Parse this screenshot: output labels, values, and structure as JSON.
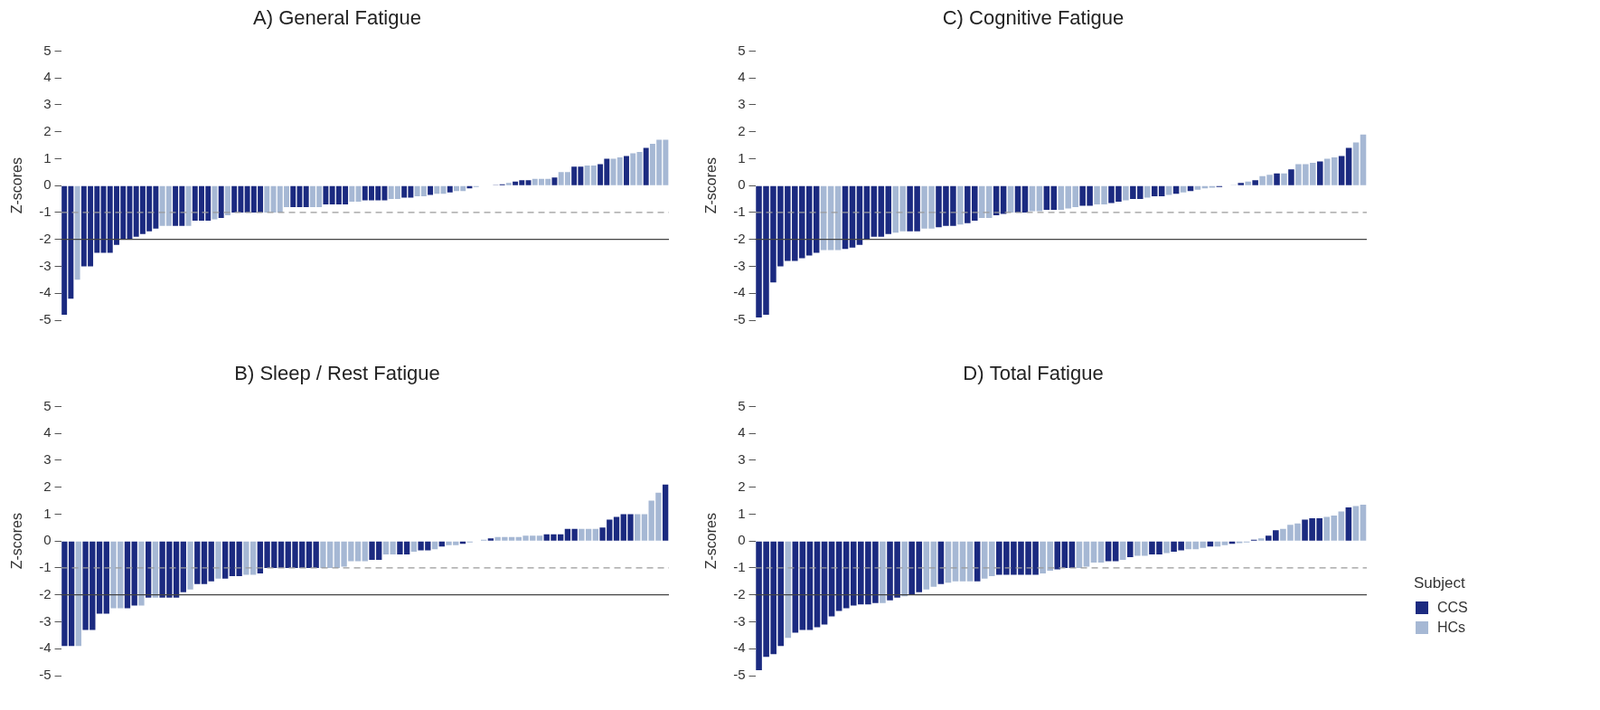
{
  "chart_data": [
    {
      "type": "bar",
      "title": "A) General Fatigue",
      "y_label": "Z-scores",
      "ylim": [
        -5,
        5
      ],
      "yticks": [
        -5,
        -4,
        -3,
        -2,
        -1,
        0,
        1,
        2,
        3,
        4,
        5
      ],
      "grid": false,
      "tick_labels": "y",
      "hlines": [
        {
          "y": -1,
          "line_style": "dashed"
        },
        {
          "y": -2,
          "line_style": "solid"
        }
      ],
      "series": [
        {
          "name": "CCS",
          "color": "#1b2a80",
          "values": [
            -4.8,
            -4.2,
            null,
            -3.0,
            -3.0,
            -2.5,
            -2.5,
            -2.5,
            -2.2,
            -2.0,
            -2.0,
            -1.9,
            -1.8,
            -1.7,
            -1.6,
            null,
            null,
            -1.5,
            -1.5,
            null,
            -1.3,
            -1.3,
            -1.3,
            null,
            -1.2,
            null,
            -1.0,
            -1.0,
            -1.0,
            -1.0,
            -1.0,
            null,
            null,
            null,
            null,
            -0.8,
            -0.8,
            -0.8,
            null,
            null,
            -0.7,
            -0.7,
            -0.7,
            -0.7,
            null,
            null,
            -0.55,
            -0.55,
            -0.55,
            -0.55,
            null,
            null,
            -0.45,
            -0.45,
            null,
            null,
            -0.35,
            null,
            null,
            -0.25,
            null,
            null,
            -0.1,
            null,
            -0.02,
            null,
            0.02,
            0.05,
            null,
            0.15,
            0.2,
            0.2,
            null,
            null,
            null,
            0.3,
            null,
            null,
            0.7,
            0.7,
            null,
            null,
            0.8,
            1.0,
            null,
            null,
            1.1,
            null,
            null,
            1.4,
            null,
            null,
            null
          ]
        },
        {
          "name": "HCs",
          "color": "#a6b8d4",
          "values": [
            null,
            null,
            -3.5,
            null,
            null,
            null,
            null,
            null,
            null,
            null,
            null,
            null,
            null,
            null,
            null,
            -1.5,
            -1.5,
            null,
            null,
            -1.5,
            null,
            null,
            null,
            -1.25,
            null,
            -1.1,
            null,
            null,
            null,
            null,
            null,
            -1.0,
            -1.0,
            -1.0,
            -0.8,
            null,
            null,
            null,
            -0.8,
            -0.8,
            null,
            null,
            null,
            null,
            -0.6,
            -0.6,
            null,
            null,
            null,
            null,
            -0.5,
            -0.5,
            null,
            null,
            -0.4,
            -0.4,
            null,
            -0.3,
            -0.3,
            null,
            -0.2,
            -0.2,
            null,
            -0.05,
            null,
            0,
            null,
            null,
            0.1,
            null,
            null,
            null,
            0.25,
            0.25,
            0.25,
            null,
            0.5,
            0.5,
            null,
            null,
            0.75,
            0.75,
            null,
            null,
            1.0,
            1.05,
            null,
            1.2,
            1.25,
            null,
            1.55,
            1.7,
            1.7
          ]
        }
      ]
    },
    {
      "type": "bar",
      "title": "B) Sleep / Rest Fatigue",
      "y_label": "Z-scores",
      "ylim": [
        -5,
        5
      ],
      "yticks": [
        -5,
        -4,
        -3,
        -2,
        -1,
        0,
        1,
        2,
        3,
        4,
        5
      ],
      "grid": false,
      "tick_labels": "y",
      "hlines": [
        {
          "y": -1,
          "line_style": "dashed"
        },
        {
          "y": -2,
          "line_style": "solid"
        }
      ],
      "series": [
        {
          "name": "CCS",
          "color": "#1b2a80",
          "values": [
            -3.9,
            -3.9,
            null,
            -3.3,
            -3.3,
            -2.7,
            -2.7,
            null,
            null,
            -2.5,
            -2.4,
            null,
            -2.1,
            null,
            -2.1,
            -2.1,
            -2.1,
            -1.9,
            null,
            -1.6,
            -1.6,
            -1.5,
            null,
            -1.4,
            -1.3,
            -1.3,
            null,
            null,
            -1.2,
            -1.0,
            -1.0,
            -1.0,
            -1.0,
            -1.0,
            -1.0,
            -1.0,
            -1.0,
            null,
            null,
            null,
            null,
            null,
            null,
            null,
            -0.7,
            -0.7,
            null,
            null,
            -0.5,
            -0.5,
            null,
            -0.35,
            -0.35,
            null,
            -0.2,
            null,
            null,
            -0.1,
            null,
            0,
            null,
            0.1,
            null,
            null,
            null,
            null,
            null,
            null,
            null,
            0.25,
            0.25,
            0.25,
            0.45,
            0.45,
            null,
            null,
            null,
            0.5,
            0.8,
            0.9,
            1.0,
            1.0,
            null,
            null,
            null,
            null,
            2.1
          ]
        },
        {
          "name": "HCs",
          "color": "#a6b8d4",
          "values": [
            null,
            null,
            -3.9,
            null,
            null,
            null,
            null,
            -2.5,
            -2.5,
            null,
            null,
            -2.4,
            null,
            -2.1,
            null,
            null,
            null,
            null,
            -1.8,
            null,
            null,
            null,
            -1.4,
            null,
            null,
            null,
            -1.25,
            -1.25,
            null,
            null,
            null,
            null,
            null,
            null,
            null,
            null,
            null,
            -1.0,
            -1.0,
            -1.0,
            -0.95,
            -0.75,
            -0.75,
            -0.75,
            null,
            null,
            -0.5,
            -0.5,
            null,
            null,
            -0.4,
            null,
            null,
            -0.3,
            null,
            -0.15,
            -0.15,
            null,
            -0.05,
            null,
            0.05,
            null,
            0.15,
            0.15,
            0.15,
            0.15,
            0.2,
            0.2,
            0.2,
            null,
            null,
            null,
            null,
            null,
            0.45,
            0.45,
            0.45,
            null,
            null,
            null,
            null,
            null,
            1.0,
            1.0,
            1.5,
            1.8,
            null
          ]
        }
      ]
    },
    {
      "type": "bar",
      "title": "C) Cognitive Fatigue",
      "y_label": "Z-scores",
      "ylim": [
        -5,
        5
      ],
      "yticks": [
        -5,
        -4,
        -3,
        -2,
        -1,
        0,
        1,
        2,
        3,
        4,
        5
      ],
      "grid": false,
      "tick_labels": "y",
      "hlines": [
        {
          "y": -1,
          "line_style": "dashed"
        },
        {
          "y": -2,
          "line_style": "solid"
        }
      ],
      "series": [
        {
          "name": "CCS",
          "color": "#1b2a80",
          "values": [
            -4.9,
            -4.8,
            -3.6,
            -3.0,
            -2.8,
            -2.8,
            -2.7,
            -2.6,
            -2.5,
            null,
            null,
            null,
            -2.35,
            -2.3,
            -2.2,
            -2.0,
            -1.9,
            -1.9,
            -1.8,
            null,
            null,
            -1.7,
            -1.7,
            null,
            null,
            -1.55,
            -1.5,
            -1.5,
            null,
            -1.4,
            -1.3,
            null,
            null,
            -1.1,
            -1.05,
            null,
            -1.0,
            -1.0,
            null,
            null,
            -0.9,
            -0.9,
            null,
            null,
            null,
            -0.75,
            -0.75,
            null,
            null,
            -0.65,
            -0.6,
            null,
            -0.5,
            -0.5,
            null,
            -0.4,
            -0.4,
            null,
            -0.3,
            null,
            -0.2,
            null,
            null,
            null,
            -0.05,
            null,
            null,
            0.1,
            null,
            0.2,
            null,
            null,
            0.45,
            null,
            0.6,
            null,
            null,
            null,
            0.9,
            null,
            null,
            1.1,
            1.4,
            null,
            null
          ]
        },
        {
          "name": "HCs",
          "color": "#a6b8d4",
          "values": [
            null,
            null,
            null,
            null,
            null,
            null,
            null,
            null,
            null,
            -2.4,
            -2.4,
            -2.4,
            null,
            null,
            null,
            null,
            null,
            null,
            null,
            -1.75,
            -1.7,
            null,
            null,
            -1.6,
            -1.6,
            null,
            null,
            null,
            -1.45,
            null,
            null,
            -1.2,
            -1.2,
            null,
            null,
            -1.0,
            null,
            null,
            -0.95,
            -0.95,
            null,
            null,
            -0.9,
            -0.85,
            -0.8,
            null,
            null,
            -0.7,
            -0.7,
            null,
            null,
            -0.55,
            null,
            null,
            -0.45,
            null,
            null,
            -0.35,
            null,
            -0.25,
            null,
            -0.15,
            -0.1,
            -0.08,
            null,
            0,
            0.02,
            null,
            0.15,
            null,
            0.35,
            0.4,
            null,
            0.45,
            null,
            0.8,
            0.8,
            0.85,
            null,
            1.0,
            1.05,
            null,
            null,
            1.6,
            1.9
          ]
        }
      ]
    },
    {
      "type": "bar",
      "title": "D) Total Fatigue",
      "y_label": "Z-scores",
      "ylim": [
        -5,
        5
      ],
      "yticks": [
        -5,
        -4,
        -3,
        -2,
        -1,
        0,
        1,
        2,
        3,
        4,
        5
      ],
      "grid": false,
      "tick_labels": "y",
      "legend": "lower right",
      "legend_title": "Subject",
      "hlines": [
        {
          "y": -1,
          "line_style": "dashed"
        },
        {
          "y": -2,
          "line_style": "solid"
        }
      ],
      "series": [
        {
          "name": "CCS",
          "color": "#1b2a80",
          "values": [
            -4.8,
            -4.3,
            -4.2,
            -3.9,
            null,
            -3.4,
            -3.3,
            -3.3,
            -3.2,
            -3.1,
            -2.8,
            -2.6,
            -2.5,
            -2.4,
            -2.35,
            -2.35,
            -2.3,
            null,
            -2.2,
            -2.1,
            null,
            -2.0,
            -1.9,
            null,
            null,
            -1.6,
            null,
            null,
            null,
            null,
            -1.5,
            null,
            null,
            -1.25,
            -1.25,
            -1.25,
            -1.25,
            -1.25,
            -1.25,
            null,
            null,
            -1.05,
            -1.0,
            -1.0,
            null,
            null,
            null,
            null,
            -0.75,
            -0.75,
            null,
            -0.6,
            null,
            null,
            -0.5,
            -0.5,
            null,
            -0.4,
            -0.35,
            null,
            null,
            null,
            -0.2,
            null,
            null,
            -0.1,
            null,
            null,
            0.05,
            null,
            0.2,
            0.4,
            null,
            null,
            null,
            0.8,
            0.85,
            0.85,
            null,
            null,
            null,
            1.25,
            null,
            null
          ]
        },
        {
          "name": "HCs",
          "color": "#a6b8d4",
          "values": [
            null,
            null,
            null,
            null,
            -3.6,
            null,
            null,
            null,
            null,
            null,
            null,
            null,
            null,
            null,
            null,
            null,
            null,
            -2.3,
            null,
            null,
            -2.05,
            null,
            null,
            -1.8,
            -1.7,
            null,
            -1.55,
            -1.5,
            -1.5,
            -1.5,
            null,
            -1.4,
            -1.3,
            null,
            null,
            null,
            null,
            null,
            null,
            -1.2,
            -1.1,
            null,
            null,
            null,
            -1.0,
            -0.95,
            -0.8,
            -0.8,
            null,
            null,
            -0.7,
            null,
            -0.55,
            -0.55,
            null,
            null,
            -0.45,
            null,
            null,
            -0.3,
            -0.3,
            -0.25,
            null,
            -0.2,
            -0.15,
            null,
            -0.08,
            -0.05,
            null,
            0.1,
            null,
            null,
            0.45,
            0.6,
            0.65,
            null,
            null,
            null,
            0.9,
            0.95,
            1.1,
            null,
            1.3,
            1.35
          ]
        }
      ]
    }
  ]
}
